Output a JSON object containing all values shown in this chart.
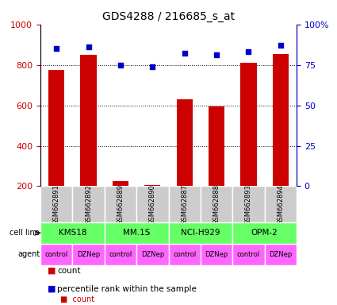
{
  "title": "GDS4288 / 216685_s_at",
  "samples": [
    "GSM662891",
    "GSM662892",
    "GSM662889",
    "GSM662890",
    "GSM662887",
    "GSM662888",
    "GSM662893",
    "GSM662894"
  ],
  "counts": [
    775,
    850,
    225,
    205,
    630,
    595,
    810,
    855
  ],
  "percentiles": [
    85,
    86,
    75,
    74,
    82,
    81,
    83,
    87
  ],
  "cell_lines": [
    {
      "label": "KMS18",
      "start": 0,
      "end": 2
    },
    {
      "label": "MM.1S",
      "start": 2,
      "end": 4
    },
    {
      "label": "NCI-H929",
      "start": 4,
      "end": 6
    },
    {
      "label": "OPM-2",
      "start": 6,
      "end": 8
    }
  ],
  "agents": [
    "control",
    "DZNep",
    "control",
    "DZNep",
    "control",
    "DZNep",
    "control",
    "DZNep"
  ],
  "ylim_left": [
    200,
    1000
  ],
  "ylim_right": [
    0,
    100
  ],
  "yticks_left": [
    200,
    400,
    600,
    800,
    1000
  ],
  "yticks_right": [
    0,
    25,
    50,
    75,
    100
  ],
  "bar_color": "#cc0000",
  "dot_color": "#0000cc",
  "cell_line_color": "#66ff66",
  "agent_color": "#ff66ff",
  "sample_bg_color": "#cccccc",
  "grid_color": "#000000",
  "left_axis_color": "#cc0000",
  "right_axis_color": "#0000cc"
}
